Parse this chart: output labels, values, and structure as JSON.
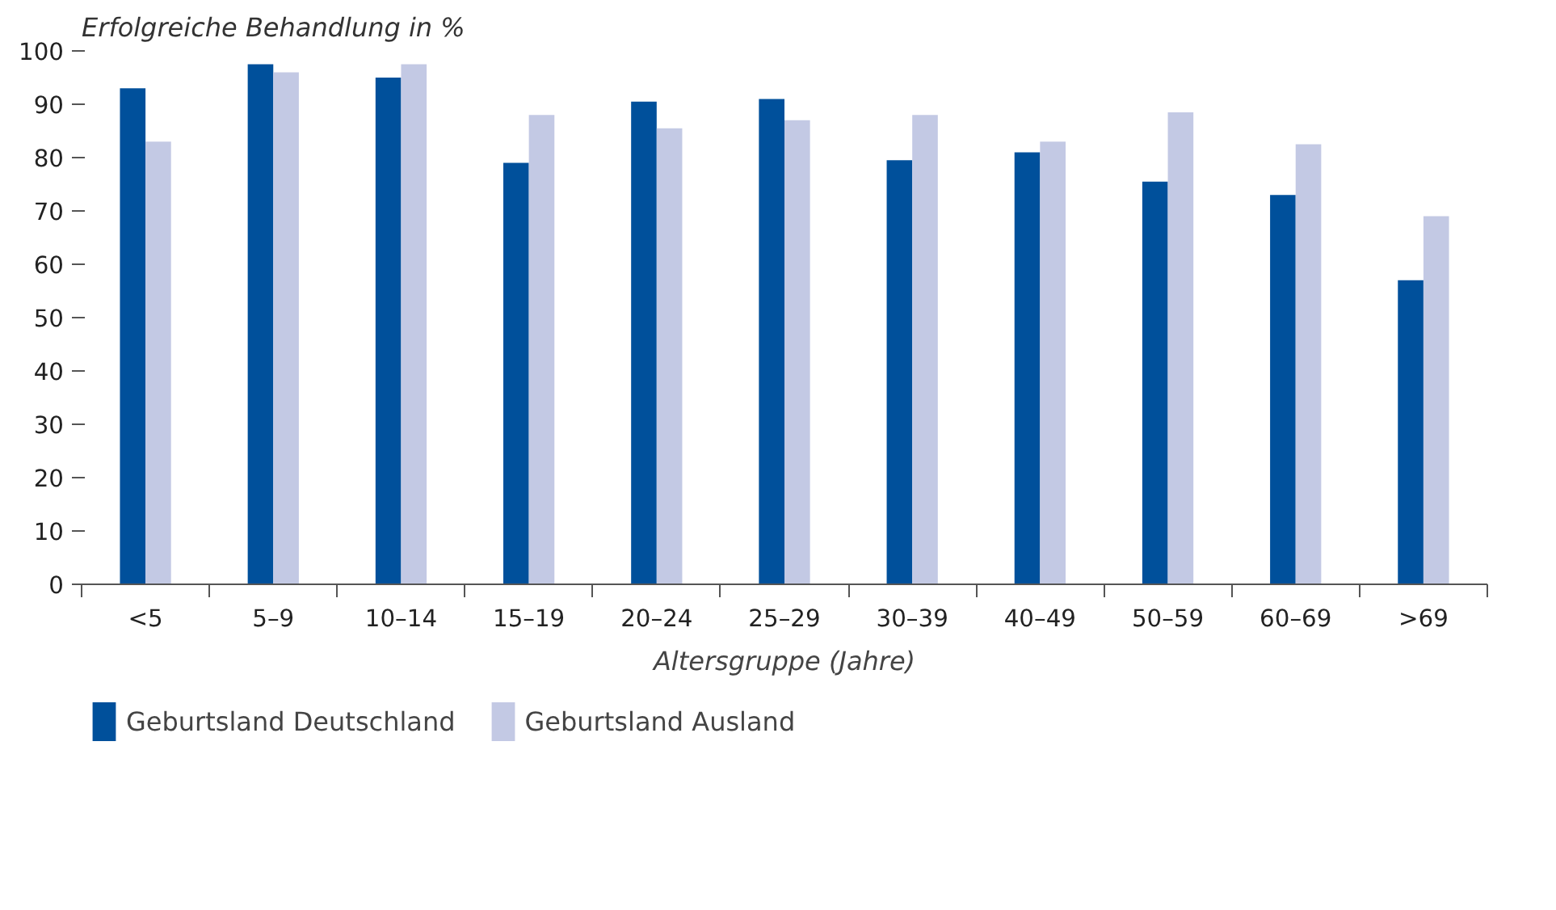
{
  "chart_data": {
    "type": "bar",
    "ylabel": "Erfolgreiche Behandlung in %",
    "xlabel": "Altersgruppe (Jahre)",
    "categories": [
      "<5",
      "5–9",
      "10–14",
      "15–19",
      "20–24",
      "25–29",
      "30–39",
      "40–49",
      "50–59",
      "60–69",
      ">69"
    ],
    "series": [
      {
        "name": "Geburtsland Deutschland",
        "color": "#00509b",
        "values": [
          93,
          97.5,
          95,
          79,
          90.5,
          91,
          79.5,
          81,
          75.5,
          73,
          57
        ]
      },
      {
        "name": "Geburtsland Ausland",
        "color": "#c3c9e4",
        "values": [
          83,
          96,
          97.5,
          88,
          85.5,
          87,
          88,
          83,
          88.5,
          82.5,
          69
        ]
      }
    ],
    "ylim": [
      0,
      100
    ],
    "yticks": [
      0,
      10,
      20,
      30,
      40,
      50,
      60,
      70,
      80,
      90,
      100
    ],
    "grid": false,
    "legend": "bottom left"
  }
}
